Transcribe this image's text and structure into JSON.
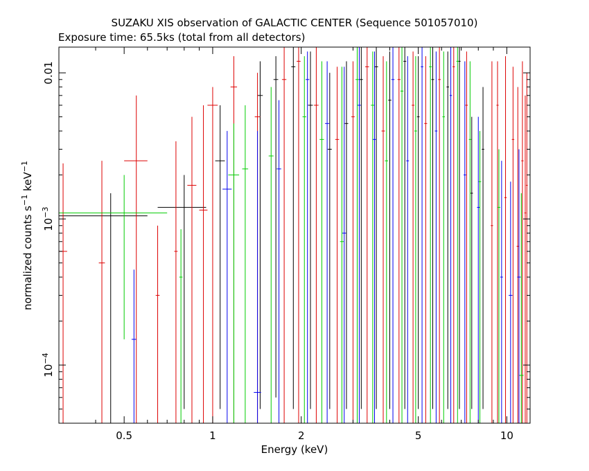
{
  "chart_data": {
    "type": "scatter",
    "title": "SUZAKU XIS observation of GALACTIC CENTER (Sequence 501057010)",
    "subtitle": "Exposure time: 65.5ks (total from all detectors)",
    "xlabel": "Energy (keV)",
    "ylabel": "normalized counts s",
    "ylabel_sup1": "−1",
    "ylabel_mid": " keV",
    "ylabel_sup2": "−1",
    "xscale": "log",
    "yscale": "log",
    "xlim": [
      0.3,
      12
    ],
    "ylim": [
      4e-05,
      0.015
    ],
    "x_ticks": [
      {
        "value": 0.5,
        "label": "0.5"
      },
      {
        "value": 1,
        "label": "1"
      },
      {
        "value": 2,
        "label": "2"
      },
      {
        "value": 5,
        "label": "5"
      },
      {
        "value": 10,
        "label": "10"
      }
    ],
    "y_ticks": [
      {
        "value": 0.0001,
        "label": "10",
        "sup": "−4"
      },
      {
        "value": 0.001,
        "label": "10",
        "sup": "−3"
      },
      {
        "value": 0.01,
        "label": "0.01",
        "sup": ""
      }
    ],
    "grid": false,
    "legend": "none",
    "series": [
      {
        "color": "#000000",
        "points": [
          {
            "x": 0.45,
            "xerr": 0.15,
            "y": 0.00105,
            "ylo": 4e-05,
            "yhi": 0.0015
          },
          {
            "x": 0.8,
            "xerr": 0.15,
            "y": 0.0012,
            "ylo": 5e-05,
            "yhi": 0.002
          },
          {
            "x": 1.06,
            "xerr": 0.04,
            "y": 0.0025,
            "ylo": 5e-05,
            "yhi": 0.006
          },
          {
            "x": 1.45,
            "xerr": 0.03,
            "y": 0.007,
            "ylo": 5e-05,
            "yhi": 0.012
          },
          {
            "x": 1.64,
            "xerr": 0.03,
            "y": 0.009,
            "ylo": 6e-05,
            "yhi": 0.013
          },
          {
            "x": 1.88,
            "xerr": 0.03,
            "y": 0.011,
            "ylo": 5e-05,
            "yhi": 0.015
          },
          {
            "x": 2.15,
            "xerr": 0.04,
            "y": 0.006,
            "ylo": 5e-05,
            "yhi": 0.014
          },
          {
            "x": 2.5,
            "xerr": 0.04,
            "y": 0.003,
            "ylo": 5e-05,
            "yhi": 0.01
          },
          {
            "x": 2.85,
            "xerr": 0.04,
            "y": 0.0045,
            "ylo": 5e-05,
            "yhi": 0.012
          },
          {
            "x": 3.2,
            "xerr": 0.04,
            "y": 0.009,
            "ylo": 5e-05,
            "yhi": 0.015
          },
          {
            "x": 3.6,
            "xerr": 0.05,
            "y": 0.011,
            "ylo": 5e-05,
            "yhi": 0.015
          },
          {
            "x": 4.0,
            "xerr": 0.05,
            "y": 0.0065,
            "ylo": 5e-05,
            "yhi": 0.014
          },
          {
            "x": 4.5,
            "xerr": 0.05,
            "y": 0.012,
            "ylo": 5e-05,
            "yhi": 0.015
          },
          {
            "x": 5.0,
            "xerr": 0.05,
            "y": 0.005,
            "ylo": 5e-05,
            "yhi": 0.013
          },
          {
            "x": 5.6,
            "xerr": 0.06,
            "y": 0.009,
            "ylo": 5e-05,
            "yhi": 0.015
          },
          {
            "x": 6.3,
            "xerr": 0.06,
            "y": 0.008,
            "ylo": 5e-05,
            "yhi": 0.014
          },
          {
            "x": 6.9,
            "xerr": 0.06,
            "y": 0.012,
            "ylo": 5e-05,
            "yhi": 0.015
          },
          {
            "x": 7.6,
            "xerr": 0.07,
            "y": 0.0015,
            "ylo": 5e-05,
            "yhi": 0.005
          },
          {
            "x": 8.3,
            "xerr": 0.08,
            "y": 0.003,
            "ylo": 5e-05,
            "yhi": 0.008
          }
        ]
      },
      {
        "color": "#dd0000",
        "points": [
          {
            "x": 0.31,
            "xerr": 0.01,
            "y": 0.0006,
            "ylo": 4e-05,
            "yhi": 0.0024
          },
          {
            "x": 0.42,
            "xerr": 0.01,
            "y": 0.0005,
            "ylo": 4e-05,
            "yhi": 0.0025
          },
          {
            "x": 0.55,
            "xerr": 0.05,
            "y": 0.0025,
            "ylo": 4e-05,
            "yhi": 0.007
          },
          {
            "x": 0.65,
            "xerr": 0.01,
            "y": 0.0003,
            "ylo": 4e-05,
            "yhi": 0.0009
          },
          {
            "x": 0.75,
            "xerr": 0.01,
            "y": 0.0006,
            "ylo": 4e-05,
            "yhi": 0.0034
          },
          {
            "x": 0.85,
            "xerr": 0.03,
            "y": 0.0017,
            "ylo": 4e-05,
            "yhi": 0.005
          },
          {
            "x": 0.93,
            "xerr": 0.03,
            "y": 0.00115,
            "ylo": 4e-05,
            "yhi": 0.006
          },
          {
            "x": 1.0,
            "xerr": 0.04,
            "y": 0.006,
            "ylo": 3e-05,
            "yhi": 0.008
          },
          {
            "x": 1.18,
            "xerr": 0.03,
            "y": 0.008,
            "ylo": 4e-05,
            "yhi": 0.013
          },
          {
            "x": 1.42,
            "xerr": 0.03,
            "y": 0.005,
            "ylo": 4e-05,
            "yhi": 0.01
          },
          {
            "x": 1.75,
            "xerr": 0.03,
            "y": 0.009,
            "ylo": 4e-05,
            "yhi": 0.015
          },
          {
            "x": 1.96,
            "xerr": 0.03,
            "y": 0.012,
            "ylo": 4e-05,
            "yhi": 0.015
          },
          {
            "x": 2.25,
            "xerr": 0.04,
            "y": 0.006,
            "ylo": 4e-05,
            "yhi": 0.015
          },
          {
            "x": 2.65,
            "xerr": 0.04,
            "y": 0.0035,
            "ylo": 4e-05,
            "yhi": 0.011
          },
          {
            "x": 3.0,
            "xerr": 0.04,
            "y": 0.005,
            "ylo": 4e-05,
            "yhi": 0.012
          },
          {
            "x": 3.35,
            "xerr": 0.05,
            "y": 0.011,
            "ylo": 4e-05,
            "yhi": 0.015
          },
          {
            "x": 3.8,
            "xerr": 0.05,
            "y": 0.004,
            "ylo": 4e-05,
            "yhi": 0.013
          },
          {
            "x": 4.3,
            "xerr": 0.05,
            "y": 0.009,
            "ylo": 4e-05,
            "yhi": 0.015
          },
          {
            "x": 4.8,
            "xerr": 0.05,
            "y": 0.006,
            "ylo": 4e-05,
            "yhi": 0.014
          },
          {
            "x": 5.3,
            "xerr": 0.06,
            "y": 0.0045,
            "ylo": 4e-05,
            "yhi": 0.013
          },
          {
            "x": 5.9,
            "xerr": 0.06,
            "y": 0.009,
            "ylo": 4e-05,
            "yhi": 0.015
          },
          {
            "x": 6.6,
            "xerr": 0.06,
            "y": 0.011,
            "ylo": 4e-05,
            "yhi": 0.015
          },
          {
            "x": 7.3,
            "xerr": 0.07,
            "y": 0.006,
            "ylo": 4e-05,
            "yhi": 0.014
          },
          {
            "x": 8.9,
            "xerr": 0.08,
            "y": 0.0009,
            "ylo": 4e-05,
            "yhi": 0.012
          },
          {
            "x": 9.3,
            "xerr": 0.08,
            "y": 0.006,
            "ylo": 4e-05,
            "yhi": 0.012
          },
          {
            "x": 9.9,
            "xerr": 0.09,
            "y": 0.0014,
            "ylo": 4e-05,
            "yhi": 0.013
          },
          {
            "x": 10.5,
            "xerr": 0.1,
            "y": 0.0035,
            "ylo": 4e-05,
            "yhi": 0.011
          },
          {
            "x": 10.9,
            "xerr": 0.1,
            "y": 0.00065,
            "ylo": 4e-05,
            "yhi": 0.008
          },
          {
            "x": 11.3,
            "xerr": 0.1,
            "y": 0.0025,
            "ylo": 4e-05,
            "yhi": 0.012
          },
          {
            "x": 11.55,
            "xerr": 0.08,
            "y": 0.0011,
            "ylo": 4e-05,
            "yhi": 0.007
          },
          {
            "x": 11.7,
            "xerr": 0.08,
            "y": 0.0017,
            "ylo": 4e-05,
            "yhi": 0.01
          }
        ]
      },
      {
        "color": "#00cc00",
        "points": [
          {
            "x": 0.5,
            "xerr": 0.2,
            "y": 0.0011,
            "ylo": 0.00015,
            "yhi": 0.002
          },
          {
            "x": 0.78,
            "xerr": 0.01,
            "y": 0.0004,
            "ylo": 4e-05,
            "yhi": 0.00085
          },
          {
            "x": 1.18,
            "xerr": 0.05,
            "y": 0.002,
            "ylo": 4e-05,
            "yhi": 0.0045
          },
          {
            "x": 1.29,
            "xerr": 0.03,
            "y": 0.0022,
            "ylo": 4e-05,
            "yhi": 0.006
          },
          {
            "x": 1.58,
            "xerr": 0.03,
            "y": 0.0027,
            "ylo": 4e-05,
            "yhi": 0.008
          },
          {
            "x": 2.05,
            "xerr": 0.03,
            "y": 0.005,
            "ylo": 4e-05,
            "yhi": 0.013
          },
          {
            "x": 2.35,
            "xerr": 0.04,
            "y": 0.0035,
            "ylo": 4e-05,
            "yhi": 0.012
          },
          {
            "x": 2.75,
            "xerr": 0.04,
            "y": 0.0007,
            "ylo": 4e-05,
            "yhi": 0.011
          },
          {
            "x": 3.1,
            "xerr": 0.04,
            "y": 0.009,
            "ylo": 4e-05,
            "yhi": 0.015
          },
          {
            "x": 3.5,
            "xerr": 0.05,
            "y": 0.006,
            "ylo": 4e-05,
            "yhi": 0.014
          },
          {
            "x": 3.9,
            "xerr": 0.05,
            "y": 0.0025,
            "ylo": 4e-05,
            "yhi": 0.012
          },
          {
            "x": 4.4,
            "xerr": 0.05,
            "y": 0.0075,
            "ylo": 4e-05,
            "yhi": 0.015
          },
          {
            "x": 4.9,
            "xerr": 0.05,
            "y": 0.004,
            "ylo": 4e-05,
            "yhi": 0.013
          },
          {
            "x": 5.5,
            "xerr": 0.06,
            "y": 0.011,
            "ylo": 4e-05,
            "yhi": 0.015
          },
          {
            "x": 6.1,
            "xerr": 0.06,
            "y": 0.005,
            "ylo": 4e-05,
            "yhi": 0.014
          },
          {
            "x": 6.8,
            "xerr": 0.06,
            "y": 0.012,
            "ylo": 4e-05,
            "yhi": 0.015
          },
          {
            "x": 7.5,
            "xerr": 0.07,
            "y": 0.0035,
            "ylo": 4e-05,
            "yhi": 0.012
          },
          {
            "x": 8.1,
            "xerr": 0.08,
            "y": 0.0018,
            "ylo": 4e-05,
            "yhi": 0.004
          },
          {
            "x": 9.4,
            "xerr": 0.1,
            "y": 0.0012,
            "ylo": 4e-05,
            "yhi": 0.003
          },
          {
            "x": 11.2,
            "xerr": 0.2,
            "y": 8.5e-05,
            "ylo": 4e-05,
            "yhi": 0.0015
          }
        ]
      },
      {
        "color": "#0000ee",
        "points": [
          {
            "x": 0.54,
            "xerr": 0.01,
            "y": 0.00015,
            "ylo": 4e-05,
            "yhi": 0.00045
          },
          {
            "x": 1.12,
            "xerr": 0.04,
            "y": 0.0016,
            "ylo": 4e-05,
            "yhi": 0.004
          },
          {
            "x": 1.42,
            "xerr": 0.04,
            "y": 6.5e-05,
            "ylo": 4e-05,
            "yhi": 0.004
          },
          {
            "x": 1.68,
            "xerr": 0.03,
            "y": 0.0022,
            "ylo": 4e-05,
            "yhi": 0.0065
          },
          {
            "x": 2.1,
            "xerr": 0.03,
            "y": 0.009,
            "ylo": 4e-05,
            "yhi": 0.014
          },
          {
            "x": 2.45,
            "xerr": 0.04,
            "y": 0.0045,
            "ylo": 4e-05,
            "yhi": 0.012
          },
          {
            "x": 2.8,
            "xerr": 0.04,
            "y": 0.0008,
            "ylo": 4e-05,
            "yhi": 0.011
          },
          {
            "x": 3.15,
            "xerr": 0.04,
            "y": 0.006,
            "ylo": 4e-05,
            "yhi": 0.015
          },
          {
            "x": 3.55,
            "xerr": 0.05,
            "y": 0.0035,
            "ylo": 4e-05,
            "yhi": 0.014
          },
          {
            "x": 4.1,
            "xerr": 0.05,
            "y": 0.009,
            "ylo": 4e-05,
            "yhi": 0.015
          },
          {
            "x": 4.6,
            "xerr": 0.05,
            "y": 0.0025,
            "ylo": 4e-05,
            "yhi": 0.013
          },
          {
            "x": 5.15,
            "xerr": 0.05,
            "y": 0.011,
            "ylo": 4e-05,
            "yhi": 0.015
          },
          {
            "x": 5.75,
            "xerr": 0.06,
            "y": 0.004,
            "ylo": 4e-05,
            "yhi": 0.014
          },
          {
            "x": 6.45,
            "xerr": 0.06,
            "y": 0.007,
            "ylo": 4e-05,
            "yhi": 0.015
          },
          {
            "x": 7.2,
            "xerr": 0.07,
            "y": 0.002,
            "ylo": 4e-05,
            "yhi": 0.012
          },
          {
            "x": 8.0,
            "xerr": 0.08,
            "y": 0.0012,
            "ylo": 4e-05,
            "yhi": 0.005
          },
          {
            "x": 9.6,
            "xerr": 0.1,
            "y": 0.0004,
            "ylo": 4e-05,
            "yhi": 0.0025
          },
          {
            "x": 10.3,
            "xerr": 0.15,
            "y": 0.0003,
            "ylo": 4e-05,
            "yhi": 0.0018
          },
          {
            "x": 11.0,
            "xerr": 0.15,
            "y": 0.0004,
            "ylo": 4e-05,
            "yhi": 0.003
          }
        ]
      }
    ]
  }
}
